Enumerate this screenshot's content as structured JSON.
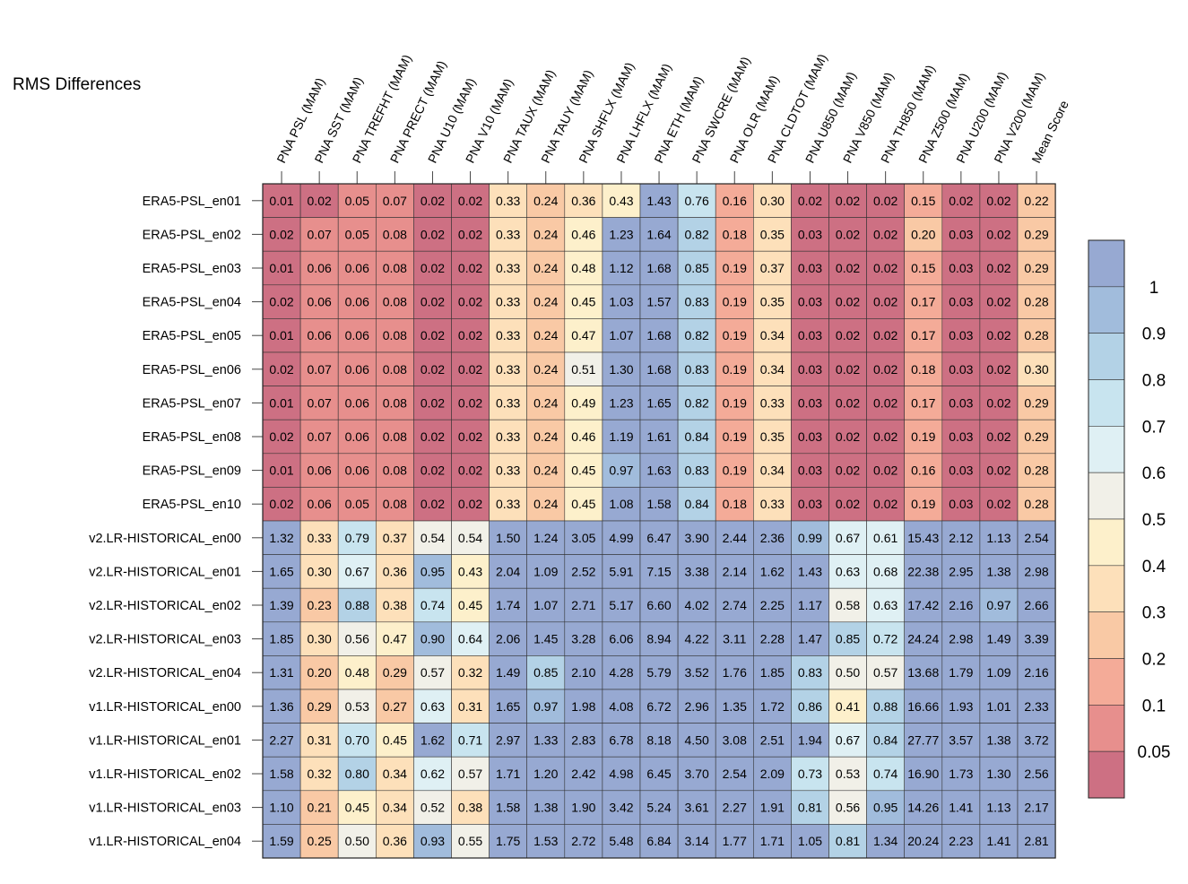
{
  "chart_data": {
    "type": "heatmap",
    "title": "RMS Differences",
    "columns": [
      "PNA PSL (MAM)",
      "PNA SST (MAM)",
      "PNA TREFHT (MAM)",
      "PNA PRECT (MAM)",
      "PNA U10 (MAM)",
      "PNA V10 (MAM)",
      "PNA TAUX (MAM)",
      "PNA TAUY (MAM)",
      "PNA SHFLX (MAM)",
      "PNA LHFLX (MAM)",
      "PNA ETH (MAM)",
      "PNA SWCRE (MAM)",
      "PNA OLR (MAM)",
      "PNA CLDTOT (MAM)",
      "PNA U850 (MAM)",
      "PNA V850 (MAM)",
      "PNA TH850 (MAM)",
      "PNA Z500 (MAM)",
      "PNA U200 (MAM)",
      "PNA V200 (MAM)",
      "Mean Score"
    ],
    "rows": [
      "ERA5-PSL_en01",
      "ERA5-PSL_en02",
      "ERA5-PSL_en03",
      "ERA5-PSL_en04",
      "ERA5-PSL_en05",
      "ERA5-PSL_en06",
      "ERA5-PSL_en07",
      "ERA5-PSL_en08",
      "ERA5-PSL_en09",
      "ERA5-PSL_en10",
      "v2.LR-HISTORICAL_en00",
      "v2.LR-HISTORICAL_en01",
      "v2.LR-HISTORICAL_en02",
      "v2.LR-HISTORICAL_en03",
      "v2.LR-HISTORICAL_en04",
      "v1.LR-HISTORICAL_en00",
      "v1.LR-HISTORICAL_en01",
      "v1.LR-HISTORICAL_en02",
      "v1.LR-HISTORICAL_en03",
      "v1.LR-HISTORICAL_en04"
    ],
    "values": [
      [
        "0.01",
        "0.02",
        "0.05",
        "0.07",
        "0.02",
        "0.02",
        "0.33",
        "0.24",
        "0.36",
        "0.43",
        "1.43",
        "0.76",
        "0.16",
        "0.30",
        "0.02",
        "0.02",
        "0.02",
        "0.15",
        "0.02",
        "0.02",
        "0.22"
      ],
      [
        "0.02",
        "0.07",
        "0.05",
        "0.08",
        "0.02",
        "0.02",
        "0.33",
        "0.24",
        "0.46",
        "1.23",
        "1.64",
        "0.82",
        "0.18",
        "0.35",
        "0.03",
        "0.02",
        "0.02",
        "0.20",
        "0.03",
        "0.02",
        "0.29"
      ],
      [
        "0.01",
        "0.06",
        "0.06",
        "0.08",
        "0.02",
        "0.02",
        "0.33",
        "0.24",
        "0.48",
        "1.12",
        "1.68",
        "0.85",
        "0.19",
        "0.37",
        "0.03",
        "0.02",
        "0.02",
        "0.15",
        "0.03",
        "0.02",
        "0.29"
      ],
      [
        "0.02",
        "0.06",
        "0.06",
        "0.08",
        "0.02",
        "0.02",
        "0.33",
        "0.24",
        "0.45",
        "1.03",
        "1.57",
        "0.83",
        "0.19",
        "0.35",
        "0.03",
        "0.02",
        "0.02",
        "0.17",
        "0.03",
        "0.02",
        "0.28"
      ],
      [
        "0.01",
        "0.06",
        "0.06",
        "0.08",
        "0.02",
        "0.02",
        "0.33",
        "0.24",
        "0.47",
        "1.07",
        "1.68",
        "0.82",
        "0.19",
        "0.34",
        "0.03",
        "0.02",
        "0.02",
        "0.17",
        "0.03",
        "0.02",
        "0.28"
      ],
      [
        "0.02",
        "0.07",
        "0.06",
        "0.08",
        "0.02",
        "0.02",
        "0.33",
        "0.24",
        "0.51",
        "1.30",
        "1.68",
        "0.83",
        "0.19",
        "0.34",
        "0.03",
        "0.02",
        "0.02",
        "0.18",
        "0.03",
        "0.02",
        "0.30"
      ],
      [
        "0.01",
        "0.07",
        "0.06",
        "0.08",
        "0.02",
        "0.02",
        "0.33",
        "0.24",
        "0.49",
        "1.23",
        "1.65",
        "0.82",
        "0.19",
        "0.33",
        "0.03",
        "0.02",
        "0.02",
        "0.17",
        "0.03",
        "0.02",
        "0.29"
      ],
      [
        "0.02",
        "0.07",
        "0.06",
        "0.08",
        "0.02",
        "0.02",
        "0.33",
        "0.24",
        "0.46",
        "1.19",
        "1.61",
        "0.84",
        "0.19",
        "0.35",
        "0.03",
        "0.02",
        "0.02",
        "0.19",
        "0.03",
        "0.02",
        "0.29"
      ],
      [
        "0.01",
        "0.06",
        "0.06",
        "0.08",
        "0.02",
        "0.02",
        "0.33",
        "0.24",
        "0.45",
        "0.97",
        "1.63",
        "0.83",
        "0.19",
        "0.34",
        "0.03",
        "0.02",
        "0.02",
        "0.16",
        "0.03",
        "0.02",
        "0.28"
      ],
      [
        "0.02",
        "0.06",
        "0.05",
        "0.08",
        "0.02",
        "0.02",
        "0.33",
        "0.24",
        "0.45",
        "1.08",
        "1.58",
        "0.84",
        "0.18",
        "0.33",
        "0.03",
        "0.02",
        "0.02",
        "0.19",
        "0.03",
        "0.02",
        "0.28"
      ],
      [
        "1.32",
        "0.33",
        "0.79",
        "0.37",
        "0.54",
        "0.54",
        "1.50",
        "1.24",
        "3.05",
        "4.99",
        "6.47",
        "3.90",
        "2.44",
        "2.36",
        "0.99",
        "0.67",
        "0.61",
        "15.43",
        "2.12",
        "1.13",
        "2.54"
      ],
      [
        "1.65",
        "0.30",
        "0.67",
        "0.36",
        "0.95",
        "0.43",
        "2.04",
        "1.09",
        "2.52",
        "5.91",
        "7.15",
        "3.38",
        "2.14",
        "1.62",
        "1.43",
        "0.63",
        "0.68",
        "22.38",
        "2.95",
        "1.38",
        "2.98"
      ],
      [
        "1.39",
        "0.23",
        "0.88",
        "0.38",
        "0.74",
        "0.45",
        "1.74",
        "1.07",
        "2.71",
        "5.17",
        "6.60",
        "4.02",
        "2.74",
        "2.25",
        "1.17",
        "0.58",
        "0.63",
        "17.42",
        "2.16",
        "0.97",
        "2.66"
      ],
      [
        "1.85",
        "0.30",
        "0.56",
        "0.47",
        "0.90",
        "0.64",
        "2.06",
        "1.45",
        "3.28",
        "6.06",
        "8.94",
        "4.22",
        "3.11",
        "2.28",
        "1.47",
        "0.85",
        "0.72",
        "24.24",
        "2.98",
        "1.49",
        "3.39"
      ],
      [
        "1.31",
        "0.20",
        "0.48",
        "0.29",
        "0.57",
        "0.32",
        "1.49",
        "0.85",
        "2.10",
        "4.28",
        "5.79",
        "3.52",
        "1.76",
        "1.85",
        "0.83",
        "0.50",
        "0.57",
        "13.68",
        "1.79",
        "1.09",
        "2.16"
      ],
      [
        "1.36",
        "0.29",
        "0.53",
        "0.27",
        "0.63",
        "0.31",
        "1.65",
        "0.97",
        "1.98",
        "4.08",
        "6.72",
        "2.96",
        "1.35",
        "1.72",
        "0.86",
        "0.41",
        "0.88",
        "16.66",
        "1.93",
        "1.01",
        "2.33"
      ],
      [
        "2.27",
        "0.31",
        "0.70",
        "0.45",
        "1.62",
        "0.71",
        "2.97",
        "1.33",
        "2.83",
        "6.78",
        "8.18",
        "4.50",
        "3.08",
        "2.51",
        "1.94",
        "0.67",
        "0.84",
        "27.77",
        "3.57",
        "1.38",
        "3.72"
      ],
      [
        "1.58",
        "0.32",
        "0.80",
        "0.34",
        "0.62",
        "0.57",
        "1.71",
        "1.20",
        "2.42",
        "4.98",
        "6.45",
        "3.70",
        "2.54",
        "2.09",
        "0.73",
        "0.53",
        "0.74",
        "16.90",
        "1.73",
        "1.30",
        "2.56"
      ],
      [
        "1.10",
        "0.21",
        "0.45",
        "0.34",
        "0.52",
        "0.38",
        "1.58",
        "1.38",
        "1.90",
        "3.42",
        "5.24",
        "3.61",
        "2.27",
        "1.91",
        "0.81",
        "0.56",
        "0.95",
        "14.26",
        "1.41",
        "1.13",
        "2.17"
      ],
      [
        "1.59",
        "0.25",
        "0.50",
        "0.36",
        "0.93",
        "0.55",
        "1.75",
        "1.53",
        "2.72",
        "5.48",
        "6.84",
        "3.14",
        "1.77",
        "1.71",
        "1.05",
        "0.81",
        "1.34",
        "20.24",
        "2.23",
        "1.41",
        "2.81"
      ]
    ],
    "colorbar": {
      "levels": [
        0.05,
        0.1,
        0.2,
        0.3,
        0.4,
        0.5,
        0.6,
        0.7,
        0.8,
        0.9,
        1
      ],
      "labels": [
        "0.05",
        "0.1",
        "0.2",
        "0.3",
        "0.4",
        "0.5",
        "0.6",
        "0.7",
        "0.8",
        "0.9",
        "1"
      ],
      "colors": [
        "#cd7083",
        "#e78f8d",
        "#f4ab98",
        "#f9c9a5",
        "#fde0ba",
        "#fdf0cb",
        "#f1f0e8",
        "#dff0f4",
        "#c8e4ef",
        "#b3d2e6",
        "#a1bcdc",
        "#97a9d2"
      ]
    }
  }
}
